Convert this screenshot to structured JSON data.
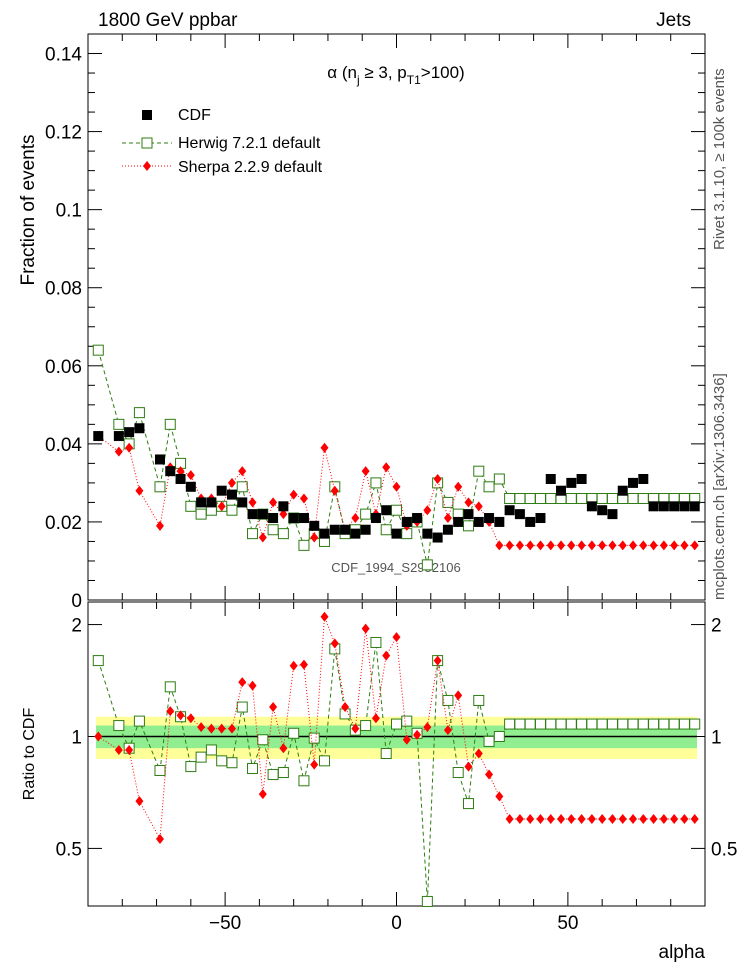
{
  "header": {
    "left": "1800 GeV ppbar",
    "right": "Jets"
  },
  "side_labels": {
    "rivet": "Rivet 3.1.10, ≥ 100k events",
    "mcplots": "mcplots.cern.ch [arXiv:1306.3436]"
  },
  "watermark": "CDF_1994_S2952106",
  "colors": {
    "cdf": "#000000",
    "herwig": "#2e7d12",
    "sherpa": "#ff0000",
    "band_inner": "#90ee90",
    "band_outer": "#ffff99"
  },
  "chart_data": [
    {
      "type": "scatter",
      "title": "α (n_j ≥ 3, p_T1>100)",
      "ylabel": "Fraction of events",
      "xlim": [
        -90,
        90
      ],
      "ylim": [
        0,
        0.145
      ],
      "yticks": [
        0,
        0.02,
        0.04,
        0.06,
        0.08,
        0.1,
        0.12,
        0.14
      ],
      "legend_position": "top-left",
      "x": [
        -87,
        -81,
        -78,
        -75,
        -69,
        -66,
        -63,
        -60,
        -57,
        -54,
        -51,
        -48,
        -45,
        -42,
        -39,
        -36,
        -33,
        -30,
        -27,
        -24,
        -21,
        -18,
        -15,
        -12,
        -9,
        -6,
        -3,
        0,
        3,
        6,
        9,
        12,
        15,
        18,
        21,
        24,
        27,
        30,
        33,
        36,
        39,
        42,
        45,
        48,
        51,
        54,
        57,
        60,
        63,
        66,
        69,
        72,
        75,
        78,
        81,
        84,
        87
      ],
      "series": [
        {
          "name": "CDF",
          "style": "filled-square",
          "x": [
            -87,
            -81,
            -78,
            -75,
            -69,
            -66,
            -63,
            -60,
            -57,
            -54,
            -51,
            -48,
            -45,
            -42,
            -39,
            -36,
            -33,
            -30,
            -27,
            -24,
            -21,
            -18,
            -15,
            -12,
            -9,
            -6,
            -3,
            0,
            3,
            6,
            9,
            12,
            15,
            18,
            21,
            24,
            27,
            30,
            33,
            36,
            39,
            42,
            45,
            48,
            51,
            54,
            57,
            60,
            63,
            66,
            69,
            72,
            75,
            78,
            81,
            84,
            87
          ],
          "values": [
            0.042,
            0.042,
            0.043,
            0.044,
            0.036,
            0.033,
            0.031,
            0.029,
            0.025,
            0.025,
            0.028,
            0.027,
            0.025,
            0.022,
            0.022,
            0.021,
            0.024,
            0.021,
            0.021,
            0.019,
            0.017,
            0.018,
            0.018,
            0.017,
            0.018,
            0.021,
            0.023,
            0.017,
            0.02,
            0.021,
            0.017,
            0.016,
            0.018,
            0.02,
            0.022,
            0.02,
            0.021,
            0.02,
            0.023,
            0.022,
            0.02,
            0.021,
            0.031,
            0.028,
            0.03,
            0.031,
            0.024,
            0.023,
            0.022,
            0.028,
            0.03,
            0.031,
            0.024,
            0.024,
            0.024,
            0.024,
            0.024
          ]
        },
        {
          "name": "Herwig 7.2.1 default",
          "style": "open-square-dashed",
          "x": [
            -87,
            -81,
            -78,
            -75,
            -69,
            -66,
            -63,
            -60,
            -57,
            -54,
            -51,
            -48,
            -45,
            -42,
            -39,
            -36,
            -33,
            -30,
            -27,
            -24,
            -21,
            -18,
            -15,
            -12,
            -9,
            -6,
            -3,
            0,
            3,
            6,
            9,
            12,
            15,
            18,
            21,
            24,
            27,
            30,
            33,
            36,
            39,
            42,
            45,
            48,
            51,
            54,
            57,
            60,
            63,
            66,
            69,
            72,
            75,
            78,
            81,
            84,
            87
          ],
          "values": [
            0.064,
            0.045,
            0.04,
            0.048,
            0.029,
            0.045,
            0.035,
            0.024,
            0.022,
            0.023,
            0.024,
            0.023,
            0.029,
            0.017,
            0.022,
            0.018,
            0.017,
            0.021,
            0.014,
            0.017,
            0.015,
            0.029,
            0.017,
            0.018,
            0.022,
            0.03,
            0.018,
            0.023,
            0.017,
            0.02,
            0.009,
            0.03,
            0.025,
            0.022,
            0.019,
            0.033,
            0.029,
            0.031,
            0.026,
            0.026,
            0.026,
            0.026,
            0.026,
            0.026,
            0.026,
            0.026,
            0.026,
            0.026,
            0.026,
            0.026,
            0.026,
            0.026,
            0.026,
            0.026,
            0.026,
            0.026,
            0.026
          ]
        },
        {
          "name": "Sherpa 2.2.9 default",
          "style": "diamond-dotted",
          "x": [
            -87,
            -81,
            -78,
            -75,
            -69,
            -66,
            -63,
            -60,
            -57,
            -54,
            -51,
            -48,
            -45,
            -42,
            -39,
            -36,
            -33,
            -30,
            -27,
            -24,
            -21,
            -18,
            -15,
            -12,
            -9,
            -6,
            -3,
            0,
            3,
            6,
            9,
            12,
            15,
            18,
            21,
            24,
            27,
            30,
            33,
            36,
            39,
            42,
            45,
            48,
            51,
            54,
            57,
            60,
            63,
            66,
            69,
            72,
            75,
            78,
            81,
            84,
            87
          ],
          "values": [
            0.042,
            0.038,
            0.039,
            0.028,
            0.019,
            0.034,
            0.033,
            0.032,
            0.026,
            0.026,
            0.024,
            0.03,
            0.033,
            0.025,
            0.016,
            0.025,
            0.022,
            0.027,
            0.026,
            0.016,
            0.039,
            0.028,
            0.018,
            0.021,
            0.033,
            0.022,
            0.034,
            0.029,
            0.019,
            0.02,
            0.023,
            0.031,
            0.021,
            0.029,
            0.025,
            0.024,
            0.02,
            0.014,
            0.014,
            0.014,
            0.014,
            0.014,
            0.014,
            0.014,
            0.014,
            0.014,
            0.014,
            0.014,
            0.014,
            0.014,
            0.014,
            0.014,
            0.014,
            0.014,
            0.014,
            0.014,
            0.014
          ]
        }
      ]
    },
    {
      "type": "scatter",
      "ylabel": "Ratio to CDF",
      "xlabel": "alpha",
      "xlim": [
        -90,
        90
      ],
      "ylim": [
        0.35,
        2.3
      ],
      "yticks": [
        0.5,
        1,
        2
      ],
      "xticks": [
        -50,
        0,
        50
      ],
      "band_inner": [
        0.93,
        1.07
      ],
      "band_outer": [
        0.87,
        1.13
      ],
      "series": [
        {
          "name": "Herwig 7.2.1 default",
          "x": [
            -87,
            -81,
            -78,
            -75,
            -69,
            -66,
            -63,
            -60,
            -57,
            -54,
            -51,
            -48,
            -45,
            -42,
            -39,
            -36,
            -33,
            -30,
            -27,
            -24,
            -21,
            -18,
            -15,
            -12,
            -9,
            -6,
            -3,
            0,
            3,
            6,
            9,
            12,
            15,
            18,
            21,
            24,
            27,
            30,
            33,
            36,
            39,
            42,
            45,
            48,
            51,
            54,
            57,
            60,
            63,
            66,
            69,
            72,
            75,
            78,
            81,
            84,
            87
          ],
          "values": [
            1.6,
            1.07,
            0.93,
            1.1,
            0.81,
            1.36,
            1.13,
            0.83,
            0.88,
            0.92,
            0.86,
            0.85,
            1.2,
            0.82,
            0.98,
            0.79,
            0.8,
            1.02,
            0.76,
            0.99,
            0.86,
            1.72,
            1.15,
            1.04,
            1.07,
            1.79,
            0.9,
            1.08,
            1.1,
            1.02,
            0.36,
            1.6,
            1.25,
            0.8,
            0.66,
            1.25,
            0.97,
            1.0,
            1.08,
            1.08,
            1.08,
            1.08,
            1.08,
            1.08,
            1.08,
            1.08,
            1.08,
            1.08,
            1.08,
            1.08,
            1.08,
            1.08,
            1.08,
            1.08,
            1.08,
            1.08,
            1.08
          ]
        },
        {
          "name": "Sherpa 2.2.9 default",
          "x": [
            -87,
            -81,
            -78,
            -75,
            -69,
            -66,
            -63,
            -60,
            -57,
            -54,
            -51,
            -48,
            -45,
            -42,
            -39,
            -36,
            -33,
            -30,
            -27,
            -24,
            -21,
            -18,
            -15,
            -12,
            -9,
            -6,
            -3,
            0,
            3,
            6,
            9,
            12,
            15,
            18,
            21,
            24,
            27,
            30,
            33,
            36,
            39,
            42,
            45,
            48,
            51,
            54,
            57,
            60,
            63,
            66,
            69,
            72,
            75,
            78,
            81,
            84,
            87
          ],
          "values": [
            1.0,
            0.92,
            0.92,
            0.67,
            0.53,
            1.17,
            1.14,
            1.12,
            1.06,
            1.05,
            1.05,
            1.05,
            1.4,
            1.37,
            0.7,
            1.2,
            0.93,
            1.55,
            1.56,
            0.84,
            2.1,
            1.78,
            1.2,
            1.05,
            1.95,
            1.12,
            1.65,
            1.85,
            0.98,
            1.01,
            1.06,
            1.6,
            1.04,
            1.29,
            0.83,
            0.9,
            0.79,
            0.69,
            0.6,
            0.6,
            0.6,
            0.6,
            0.6,
            0.6,
            0.6,
            0.6,
            0.6,
            0.6,
            0.6,
            0.6,
            0.6,
            0.6,
            0.6,
            0.6,
            0.6,
            0.6,
            0.6
          ]
        }
      ]
    }
  ]
}
